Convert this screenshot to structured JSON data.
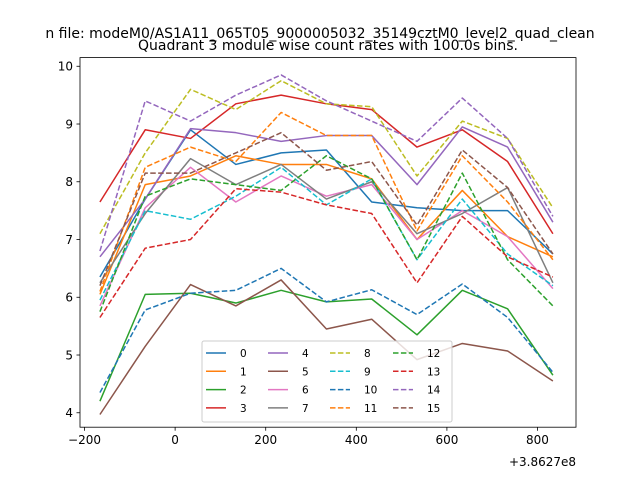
{
  "chart_data": {
    "type": "line",
    "suptitle": "n file: modeM0/AS1A11_065T05_9000005032_35149cztM0_level2_quad_clean",
    "title": "Quadrant 3 module wise count rates with 100.0s bins.",
    "xlabel": "",
    "ylabel": "",
    "x_offset_label": "+3.8627e8",
    "xlim": [
      -210,
      885
    ],
    "ylim": [
      3.75,
      10.15
    ],
    "xticks": [
      -200,
      0,
      200,
      400,
      600,
      800
    ],
    "xtick_labels": [
      "−200",
      "0",
      "200",
      "400",
      "600",
      "800"
    ],
    "yticks": [
      4,
      5,
      6,
      7,
      8,
      9,
      10
    ],
    "ytick_labels": [
      "4",
      "5",
      "6",
      "7",
      "8",
      "9",
      "10"
    ],
    "grid": false,
    "legend_position": "bottom-center",
    "legend_columns": 4,
    "x": [
      -166,
      -66,
      34,
      134,
      234,
      334,
      434,
      534,
      634,
      734,
      834
    ],
    "series": [
      {
        "name": "0",
        "color": "#1f77b4",
        "dash": "solid",
        "values": [
          6.35,
          7.7,
          8.9,
          8.3,
          8.5,
          8.55,
          7.65,
          7.55,
          7.5,
          7.5,
          6.75
        ]
      },
      {
        "name": "1",
        "color": "#ff7f0e",
        "dash": "solid",
        "values": [
          6.05,
          7.95,
          8.1,
          8.45,
          8.3,
          8.3,
          8.05,
          7.0,
          7.85,
          7.05,
          6.7
        ]
      },
      {
        "name": "2",
        "color": "#2ca02c",
        "dash": "solid",
        "values": [
          4.2,
          6.05,
          6.07,
          5.9,
          6.12,
          5.92,
          5.97,
          5.35,
          6.12,
          5.8,
          4.65
        ]
      },
      {
        "name": "3",
        "color": "#d62728",
        "dash": "solid",
        "values": [
          7.65,
          8.9,
          8.75,
          9.35,
          9.5,
          9.35,
          9.25,
          8.6,
          8.9,
          8.35,
          7.1
        ]
      },
      {
        "name": "4",
        "color": "#9467bd",
        "dash": "solid",
        "values": [
          6.7,
          7.7,
          8.92,
          8.85,
          8.7,
          8.8,
          8.8,
          7.95,
          8.95,
          8.6,
          7.3
        ]
      },
      {
        "name": "5",
        "color": "#8c564b",
        "dash": "solid",
        "values": [
          3.97,
          5.15,
          6.22,
          5.85,
          6.3,
          5.45,
          5.62,
          4.92,
          5.2,
          5.07,
          4.55
        ]
      },
      {
        "name": "6",
        "color": "#e377c2",
        "dash": "solid",
        "values": [
          5.85,
          7.55,
          8.25,
          7.65,
          8.1,
          7.75,
          7.95,
          7.0,
          7.5,
          7.05,
          6.15
        ]
      },
      {
        "name": "7",
        "color": "#7f7f7f",
        "dash": "solid",
        "values": [
          6.25,
          7.45,
          8.4,
          7.95,
          8.3,
          7.7,
          8.0,
          7.1,
          7.45,
          7.9,
          6.25
        ]
      },
      {
        "name": "8",
        "color": "#bcbd22",
        "dash": "dashed",
        "values": [
          7.1,
          8.5,
          9.6,
          9.25,
          9.75,
          9.35,
          9.3,
          8.1,
          9.05,
          8.75,
          7.55
        ]
      },
      {
        "name": "9",
        "color": "#17becf",
        "dash": "dashed",
        "values": [
          5.95,
          7.5,
          7.35,
          7.75,
          8.25,
          7.6,
          8.05,
          6.65,
          7.7,
          6.75,
          6.2
        ]
      },
      {
        "name": "10",
        "color": "#1f77b4",
        "dash": "dashed",
        "values": [
          4.35,
          5.78,
          6.07,
          6.12,
          6.5,
          5.92,
          6.13,
          5.7,
          6.23,
          5.65,
          4.7
        ]
      },
      {
        "name": "11",
        "color": "#ff7f0e",
        "dash": "dashed",
        "values": [
          6.1,
          8.25,
          8.6,
          8.35,
          9.2,
          8.8,
          8.8,
          7.15,
          8.45,
          7.65,
          6.65
        ]
      },
      {
        "name": "12",
        "color": "#2ca02c",
        "dash": "dashed",
        "values": [
          5.75,
          7.75,
          8.05,
          7.95,
          7.85,
          8.45,
          8.05,
          6.65,
          8.15,
          6.65,
          5.85
        ]
      },
      {
        "name": "13",
        "color": "#d62728",
        "dash": "dashed",
        "values": [
          5.65,
          6.85,
          7.0,
          7.88,
          7.82,
          7.6,
          7.45,
          6.25,
          7.4,
          6.7,
          6.35
        ]
      },
      {
        "name": "14",
        "color": "#9467bd",
        "dash": "dashed",
        "values": [
          6.8,
          9.4,
          9.05,
          9.5,
          9.85,
          9.4,
          9.05,
          8.7,
          9.45,
          8.75,
          7.4
        ]
      },
      {
        "name": "15",
        "color": "#8c564b",
        "dash": "dashed",
        "values": [
          6.2,
          8.15,
          8.15,
          8.5,
          8.85,
          8.2,
          8.35,
          7.25,
          8.55,
          7.9,
          6.75
        ]
      }
    ]
  }
}
